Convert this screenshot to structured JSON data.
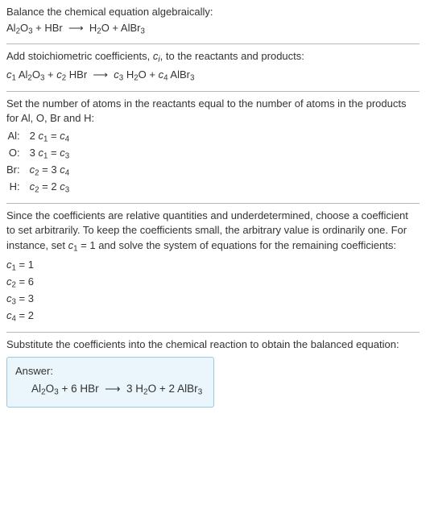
{
  "font": {
    "family": "Arial",
    "base_pt": 13,
    "color": "#333333"
  },
  "colors": {
    "background": "#ffffff",
    "divider": "#bbbbbb",
    "answer_border": "#9dc6e0",
    "answer_bg": "#eaf6fb"
  },
  "section1": {
    "intro": "Balance the chemical equation algebraically:",
    "eq_html": "Al<sub>2</sub>O<sub>3</sub> + HBr &nbsp;⟶&nbsp; H<sub>2</sub>O + AlBr<sub>3</sub>"
  },
  "section2": {
    "intro_html": "Add stoichiometric coefficients, <span class=\"var\">c</span><span class=\"sub-i\">i</span>, to the reactants and products:",
    "eq_html": "<span class=\"var\">c</span><sub>1</sub> Al<sub>2</sub>O<sub>3</sub> + <span class=\"var\">c</span><sub>2</sub> HBr &nbsp;⟶&nbsp; <span class=\"var\">c</span><sub>3</sub> H<sub>2</sub>O + <span class=\"var\">c</span><sub>4</sub> AlBr<sub>3</sub>"
  },
  "section3": {
    "intro": "Set the number of atoms in the reactants equal to the number of atoms in the products for Al, O, Br and H:",
    "rows": [
      {
        "el": "Al:",
        "eq_html": "2 <span class=\"var\">c</span><sub>1</sub> = <span class=\"var\">c</span><sub>4</sub>"
      },
      {
        "el": "O:",
        "eq_html": "3 <span class=\"var\">c</span><sub>1</sub> = <span class=\"var\">c</span><sub>3</sub>"
      },
      {
        "el": "Br:",
        "eq_html": "<span class=\"var\">c</span><sub>2</sub> = 3 <span class=\"var\">c</span><sub>4</sub>"
      },
      {
        "el": "H:",
        "eq_html": "<span class=\"var\">c</span><sub>2</sub> = 2 <span class=\"var\">c</span><sub>3</sub>"
      }
    ]
  },
  "section4": {
    "intro_html": "Since the coefficients are relative quantities and underdetermined, choose a coefficient to set arbitrarily. To keep the coefficients small, the arbitrary value is ordinarily one. For instance, set <span class=\"var\">c</span><sub>1</sub> = 1 and solve the system of equations for the remaining coefficients:",
    "coeffs": [
      "<span class=\"var\">c</span><sub>1</sub> = 1",
      "<span class=\"var\">c</span><sub>2</sub> = 6",
      "<span class=\"var\">c</span><sub>3</sub> = 3",
      "<span class=\"var\">c</span><sub>4</sub> = 2"
    ]
  },
  "section5": {
    "intro": "Substitute the coefficients into the chemical reaction to obtain the balanced equation:",
    "answer_label": "Answer:",
    "answer_eq_html": "Al<sub>2</sub>O<sub>3</sub> + 6 HBr &nbsp;⟶&nbsp; 3 H<sub>2</sub>O + 2 AlBr<sub>3</sub>"
  }
}
